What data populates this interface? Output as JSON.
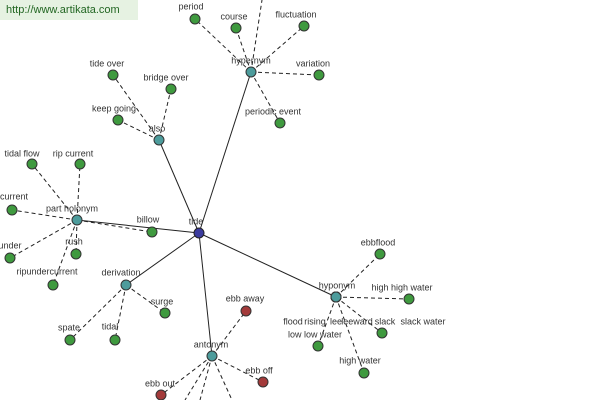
{
  "header": {
    "link": "http://www.artikata.com"
  },
  "center": {
    "label": "tide",
    "color": "#3b3b9e"
  },
  "relations": [
    {
      "label": "hypernym",
      "color": "#4d9c9c",
      "term_color": "#3f9a3f",
      "terms": [
        "period",
        "course",
        "fluctuation",
        "variation",
        "periodic event"
      ]
    },
    {
      "label": "also",
      "color": "#4d9c9c",
      "term_color": "#3f9a3f",
      "terms": [
        "tide over",
        "bridge over",
        "keep going"
      ]
    },
    {
      "label": "part holonym",
      "color": "#4d9c9c",
      "term_color": "#3f9a3f",
      "terms": [
        "tidal flow",
        "rip current",
        "current",
        "under",
        "ripundercurrent",
        "rush",
        "billow"
      ]
    },
    {
      "label": "derivation",
      "color": "#4d9c9c",
      "term_color": "#3f9a3f",
      "terms": [
        "spate",
        "tidal",
        "surge"
      ]
    },
    {
      "label": "hyponym",
      "color": "#4d9c9c",
      "term_color": "#3f9a3f",
      "terms": [
        "ebbflood",
        "high high water",
        "flood",
        "rising",
        "lee",
        "leeward",
        "slack",
        "slack water",
        "low low water",
        "high water"
      ]
    },
    {
      "label": "antonym",
      "color": "#4d9c9c",
      "term_color": "#a33a3a",
      "terms": [
        "ebb away",
        "ebb off",
        "ebb out"
      ]
    }
  ]
}
